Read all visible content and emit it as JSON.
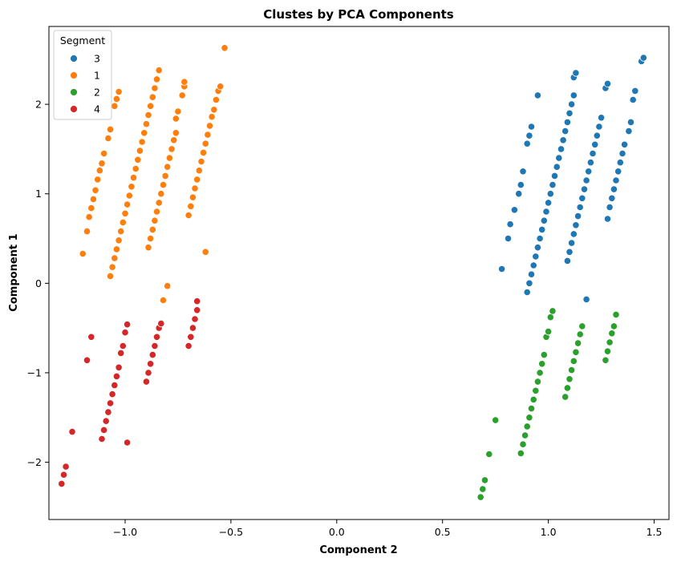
{
  "chart_data": {
    "type": "scatter",
    "title": "Clustes by PCA Components",
    "xlabel": "Component 2",
    "ylabel": "Component 1",
    "xlim": [
      -1.36,
      1.57
    ],
    "ylim": [
      -2.64,
      2.87
    ],
    "xticks": [
      -1.0,
      -0.5,
      0.0,
      0.5,
      1.0,
      1.5
    ],
    "xtick_labels": [
      "−1.0",
      "−0.5",
      "0.0",
      "0.5",
      "1.0",
      "1.5"
    ],
    "yticks": [
      -2,
      -1,
      0,
      1,
      2
    ],
    "ytick_labels": [
      "−2",
      "−1",
      "0",
      "1",
      "2"
    ],
    "grid": false,
    "legend": {
      "title": "Segment",
      "placement": "top-left"
    },
    "series": [
      {
        "name": "3",
        "color": "#1f77b4",
        "points": [
          [
            0.9,
            -0.1
          ],
          [
            0.91,
            0.0
          ],
          [
            0.92,
            0.1
          ],
          [
            0.93,
            0.2
          ],
          [
            0.94,
            0.3
          ],
          [
            0.95,
            0.4
          ],
          [
            0.96,
            0.5
          ],
          [
            0.97,
            0.6
          ],
          [
            0.98,
            0.7
          ],
          [
            0.99,
            0.8
          ],
          [
            1.0,
            0.9
          ],
          [
            1.01,
            1.0
          ],
          [
            1.02,
            1.1
          ],
          [
            1.03,
            1.2
          ],
          [
            1.04,
            1.3
          ],
          [
            1.05,
            1.4
          ],
          [
            1.06,
            1.5
          ],
          [
            1.07,
            1.6
          ],
          [
            1.08,
            1.7
          ],
          [
            1.09,
            1.8
          ],
          [
            1.1,
            1.9
          ],
          [
            1.11,
            2.0
          ],
          [
            1.12,
            2.1
          ],
          [
            1.09,
            0.25
          ],
          [
            1.1,
            0.35
          ],
          [
            1.11,
            0.45
          ],
          [
            1.12,
            0.55
          ],
          [
            1.13,
            0.65
          ],
          [
            1.14,
            0.75
          ],
          [
            1.15,
            0.85
          ],
          [
            1.16,
            0.95
          ],
          [
            1.17,
            1.05
          ],
          [
            1.18,
            1.15
          ],
          [
            1.19,
            1.25
          ],
          [
            1.2,
            1.35
          ],
          [
            1.21,
            1.45
          ],
          [
            1.22,
            1.55
          ],
          [
            1.23,
            1.65
          ],
          [
            1.24,
            1.75
          ],
          [
            1.25,
            1.85
          ],
          [
            1.29,
            0.85
          ],
          [
            1.3,
            0.95
          ],
          [
            1.31,
            1.05
          ],
          [
            1.32,
            1.15
          ],
          [
            1.33,
            1.25
          ],
          [
            1.34,
            1.35
          ],
          [
            1.35,
            1.45
          ],
          [
            1.36,
            1.55
          ],
          [
            1.38,
            1.7
          ],
          [
            1.39,
            1.8
          ],
          [
            1.4,
            2.05
          ],
          [
            1.41,
            2.15
          ],
          [
            1.44,
            2.48
          ],
          [
            1.45,
            2.52
          ],
          [
            0.78,
            0.16
          ],
          [
            0.81,
            0.5
          ],
          [
            0.82,
            0.66
          ],
          [
            0.84,
            0.82
          ],
          [
            0.86,
            1.0
          ],
          [
            0.87,
            1.1
          ],
          [
            0.88,
            1.25
          ],
          [
            0.9,
            1.56
          ],
          [
            0.91,
            1.65
          ],
          [
            0.92,
            1.75
          ],
          [
            0.95,
            2.1
          ],
          [
            1.12,
            2.3
          ],
          [
            1.13,
            2.35
          ],
          [
            1.27,
            2.18
          ],
          [
            1.28,
            2.23
          ],
          [
            1.28,
            0.72
          ],
          [
            1.18,
            -0.18
          ]
        ]
      },
      {
        "name": "1",
        "color": "#ff7f0e",
        "points": [
          [
            -1.07,
            0.08
          ],
          [
            -1.06,
            0.18
          ],
          [
            -1.05,
            0.28
          ],
          [
            -1.04,
            0.38
          ],
          [
            -1.03,
            0.48
          ],
          [
            -1.02,
            0.58
          ],
          [
            -1.01,
            0.68
          ],
          [
            -1.0,
            0.78
          ],
          [
            -0.99,
            0.88
          ],
          [
            -0.98,
            0.98
          ],
          [
            -0.97,
            1.08
          ],
          [
            -0.96,
            1.18
          ],
          [
            -0.95,
            1.28
          ],
          [
            -0.94,
            1.38
          ],
          [
            -0.93,
            1.48
          ],
          [
            -0.92,
            1.58
          ],
          [
            -0.91,
            1.68
          ],
          [
            -0.9,
            1.78
          ],
          [
            -0.89,
            1.88
          ],
          [
            -0.88,
            1.98
          ],
          [
            -0.87,
            2.08
          ],
          [
            -0.86,
            2.18
          ],
          [
            -0.85,
            2.28
          ],
          [
            -0.84,
            2.38
          ],
          [
            -0.89,
            0.4
          ],
          [
            -0.88,
            0.5
          ],
          [
            -0.87,
            0.6
          ],
          [
            -0.86,
            0.7
          ],
          [
            -0.85,
            0.8
          ],
          [
            -0.84,
            0.9
          ],
          [
            -0.83,
            1.0
          ],
          [
            -0.82,
            1.1
          ],
          [
            -0.81,
            1.2
          ],
          [
            -0.8,
            1.3
          ],
          [
            -0.79,
            1.4
          ],
          [
            -0.78,
            1.5
          ],
          [
            -0.77,
            1.6
          ],
          [
            -0.76,
            1.68
          ],
          [
            -0.7,
            0.76
          ],
          [
            -0.69,
            0.86
          ],
          [
            -0.68,
            0.96
          ],
          [
            -0.67,
            1.06
          ],
          [
            -0.66,
            1.16
          ],
          [
            -0.65,
            1.26
          ],
          [
            -0.64,
            1.36
          ],
          [
            -0.63,
            1.46
          ],
          [
            -0.62,
            1.56
          ],
          [
            -0.61,
            1.66
          ],
          [
            -0.6,
            1.76
          ],
          [
            -0.59,
            1.86
          ],
          [
            -0.58,
            1.94
          ],
          [
            -0.57,
            2.05
          ],
          [
            -0.56,
            2.15
          ],
          [
            -0.55,
            2.2
          ],
          [
            -1.2,
            0.33
          ],
          [
            -1.18,
            0.58
          ],
          [
            -1.17,
            0.74
          ],
          [
            -1.16,
            0.84
          ],
          [
            -1.15,
            0.94
          ],
          [
            -1.14,
            1.04
          ],
          [
            -1.13,
            1.16
          ],
          [
            -1.12,
            1.26
          ],
          [
            -1.11,
            1.34
          ],
          [
            -1.1,
            1.45
          ],
          [
            -1.08,
            1.62
          ],
          [
            -1.07,
            1.72
          ],
          [
            -1.05,
            1.98
          ],
          [
            -1.04,
            2.06
          ],
          [
            -1.03,
            2.14
          ],
          [
            -0.76,
            1.84
          ],
          [
            -0.75,
            1.92
          ],
          [
            -0.73,
            2.1
          ],
          [
            -0.72,
            2.2
          ],
          [
            -0.72,
            2.25
          ],
          [
            -0.53,
            2.63
          ],
          [
            -0.62,
            0.35
          ],
          [
            -0.8,
            -0.03
          ],
          [
            -0.82,
            -0.19
          ]
        ]
      },
      {
        "name": "2",
        "color": "#2ca02c",
        "points": [
          [
            0.68,
            -2.39
          ],
          [
            0.69,
            -2.3
          ],
          [
            0.7,
            -2.2
          ],
          [
            0.87,
            -1.9
          ],
          [
            0.88,
            -1.8
          ],
          [
            0.89,
            -1.7
          ],
          [
            0.9,
            -1.6
          ],
          [
            0.91,
            -1.5
          ],
          [
            0.92,
            -1.4
          ],
          [
            0.93,
            -1.3
          ],
          [
            0.94,
            -1.2
          ],
          [
            0.95,
            -1.1
          ],
          [
            0.96,
            -1.0
          ],
          [
            0.97,
            -0.9
          ],
          [
            0.98,
            -0.8
          ],
          [
            1.08,
            -1.27
          ],
          [
            1.09,
            -1.17
          ],
          [
            1.1,
            -1.07
          ],
          [
            1.11,
            -0.97
          ],
          [
            1.12,
            -0.87
          ],
          [
            1.13,
            -0.77
          ],
          [
            1.14,
            -0.67
          ],
          [
            1.15,
            -0.57
          ],
          [
            1.16,
            -0.48
          ],
          [
            1.27,
            -0.86
          ],
          [
            1.28,
            -0.76
          ],
          [
            1.29,
            -0.66
          ],
          [
            1.3,
            -0.56
          ],
          [
            1.31,
            -0.48
          ],
          [
            1.32,
            -0.35
          ],
          [
            0.72,
            -1.91
          ],
          [
            0.75,
            -1.53
          ],
          [
            0.99,
            -0.6
          ],
          [
            1.0,
            -0.54
          ],
          [
            1.01,
            -0.38
          ],
          [
            1.02,
            -0.31
          ]
        ]
      },
      {
        "name": "4",
        "color": "#d62728",
        "points": [
          [
            -1.3,
            -2.24
          ],
          [
            -1.29,
            -2.14
          ],
          [
            -1.28,
            -2.05
          ],
          [
            -1.11,
            -1.74
          ],
          [
            -1.1,
            -1.64
          ],
          [
            -1.09,
            -1.54
          ],
          [
            -1.08,
            -1.44
          ],
          [
            -1.07,
            -1.34
          ],
          [
            -1.06,
            -1.24
          ],
          [
            -1.05,
            -1.14
          ],
          [
            -1.04,
            -1.04
          ],
          [
            -1.03,
            -0.94
          ],
          [
            -0.9,
            -1.1
          ],
          [
            -0.89,
            -1.0
          ],
          [
            -0.88,
            -0.9
          ],
          [
            -0.87,
            -0.8
          ],
          [
            -0.86,
            -0.7
          ],
          [
            -0.85,
            -0.6
          ],
          [
            -0.84,
            -0.5
          ],
          [
            -0.83,
            -0.45
          ],
          [
            -0.7,
            -0.7
          ],
          [
            -0.69,
            -0.6
          ],
          [
            -0.68,
            -0.5
          ],
          [
            -0.67,
            -0.4
          ],
          [
            -0.66,
            -0.3
          ],
          [
            -0.66,
            -0.2
          ],
          [
            -1.25,
            -1.66
          ],
          [
            -1.18,
            -0.86
          ],
          [
            -1.16,
            -0.6
          ],
          [
            -1.02,
            -0.78
          ],
          [
            -1.01,
            -0.7
          ],
          [
            -1.0,
            -0.55
          ],
          [
            -0.99,
            -0.46
          ],
          [
            -0.99,
            -1.78
          ]
        ]
      }
    ]
  }
}
